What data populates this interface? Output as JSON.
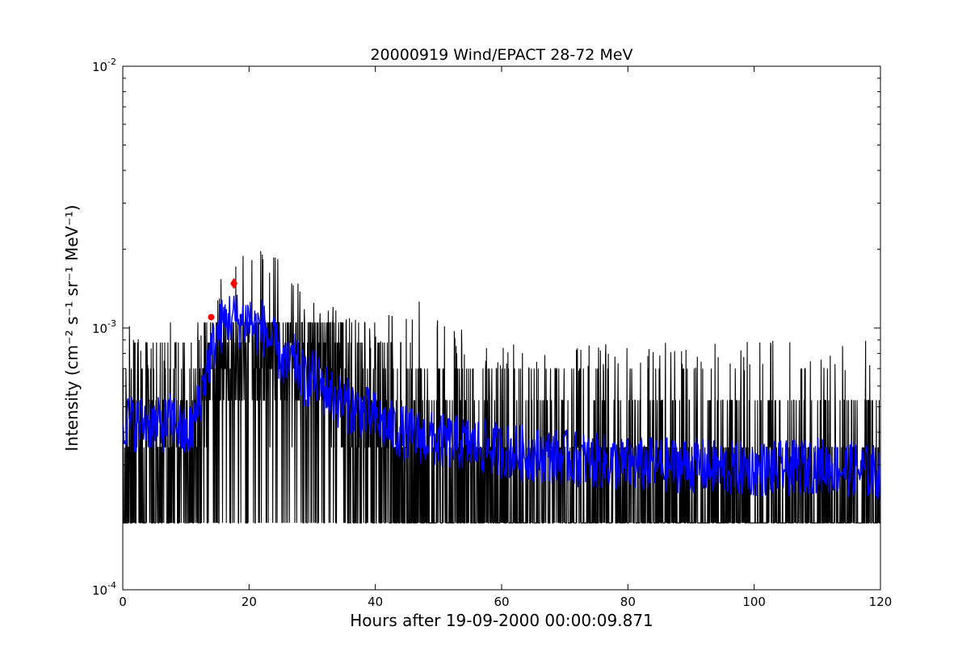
{
  "chart_data": {
    "type": "line",
    "title": "20000919 Wind/EPACT 28-72 MeV",
    "xlabel": "Hours after 19-09-2000 00:00:09.871",
    "ylabel": "Intensity (cm⁻² s⁻¹ sr⁻¹ MeV⁻¹)",
    "xlim": [
      0,
      120
    ],
    "ylim": [
      0.0001,
      0.01
    ],
    "yscale": "log",
    "grid": false,
    "legend": "none",
    "x_ticks": [
      {
        "value": 0,
        "label": "0"
      },
      {
        "value": 20,
        "label": "20"
      },
      {
        "value": 40,
        "label": "40"
      },
      {
        "value": 60,
        "label": "60"
      },
      {
        "value": 80,
        "label": "80"
      },
      {
        "value": 100,
        "label": "100"
      },
      {
        "value": 120,
        "label": "120"
      }
    ],
    "y_ticks": [
      {
        "value": 0.0001,
        "base": "10",
        "exp": "-4"
      },
      {
        "value": 0.001,
        "base": "10",
        "exp": "-3"
      },
      {
        "value": 0.01,
        "base": "10",
        "exp": "-2"
      }
    ],
    "series": [
      {
        "role": "raw-intensity",
        "color": "#000000",
        "quantized_levels": [
          0.00018,
          0.00035,
          0.00053,
          0.0007,
          0.00088,
          0.00105
        ],
        "profile_x": [
          0,
          4,
          8,
          11,
          13,
          15,
          17,
          19,
          21,
          23,
          26,
          30,
          35,
          40,
          45,
          50,
          60,
          80,
          100,
          120
        ],
        "profile_max": [
          0.0014,
          0.0009,
          0.00088,
          0.0007,
          0.0011,
          0.0016,
          0.0019,
          0.002,
          0.0019,
          0.0021,
          0.0016,
          0.0015,
          0.0011,
          0.0011,
          0.0014,
          0.0011,
          0.0009,
          0.0009,
          0.0009,
          0.0009
        ]
      },
      {
        "role": "smoothed-intensity",
        "color": "#0000ff",
        "x": [
          0,
          2,
          4,
          6,
          8,
          10,
          11,
          12,
          13,
          14,
          15,
          16,
          17,
          18,
          19,
          20,
          21,
          22,
          23,
          24,
          25,
          26,
          27,
          28,
          29,
          30,
          32,
          34,
          36,
          38,
          40,
          42,
          44,
          46,
          48,
          50,
          55,
          60,
          65,
          70,
          75,
          80,
          85,
          90,
          95,
          100,
          105,
          110,
          115,
          120
        ],
        "y": [
          0.00045,
          0.00043,
          0.00044,
          0.00042,
          0.00045,
          0.00038,
          0.00042,
          0.0005,
          0.00065,
          0.0008,
          0.00095,
          0.00105,
          0.0011,
          0.00108,
          0.00105,
          0.0011,
          0.00098,
          0.00102,
          0.00092,
          0.00085,
          0.00078,
          0.0007,
          0.00075,
          0.00068,
          0.00062,
          0.00066,
          0.00058,
          0.00053,
          0.0005,
          0.00048,
          0.00045,
          0.00042,
          0.0004,
          0.00039,
          0.00038,
          0.00037,
          0.00036,
          0.00034,
          0.00033,
          0.00032,
          0.00031,
          0.0003,
          0.0003,
          0.0003,
          0.00029,
          0.00029,
          0.00029,
          0.0003,
          0.00029,
          0.00028
        ]
      }
    ],
    "markers": [
      {
        "x": 14.0,
        "y": 0.0011,
        "color": "#ff0000",
        "shape": "circle"
      },
      {
        "x": 17.6,
        "y": 0.00148,
        "color": "#ff0000",
        "shape": "diamond"
      }
    ]
  }
}
